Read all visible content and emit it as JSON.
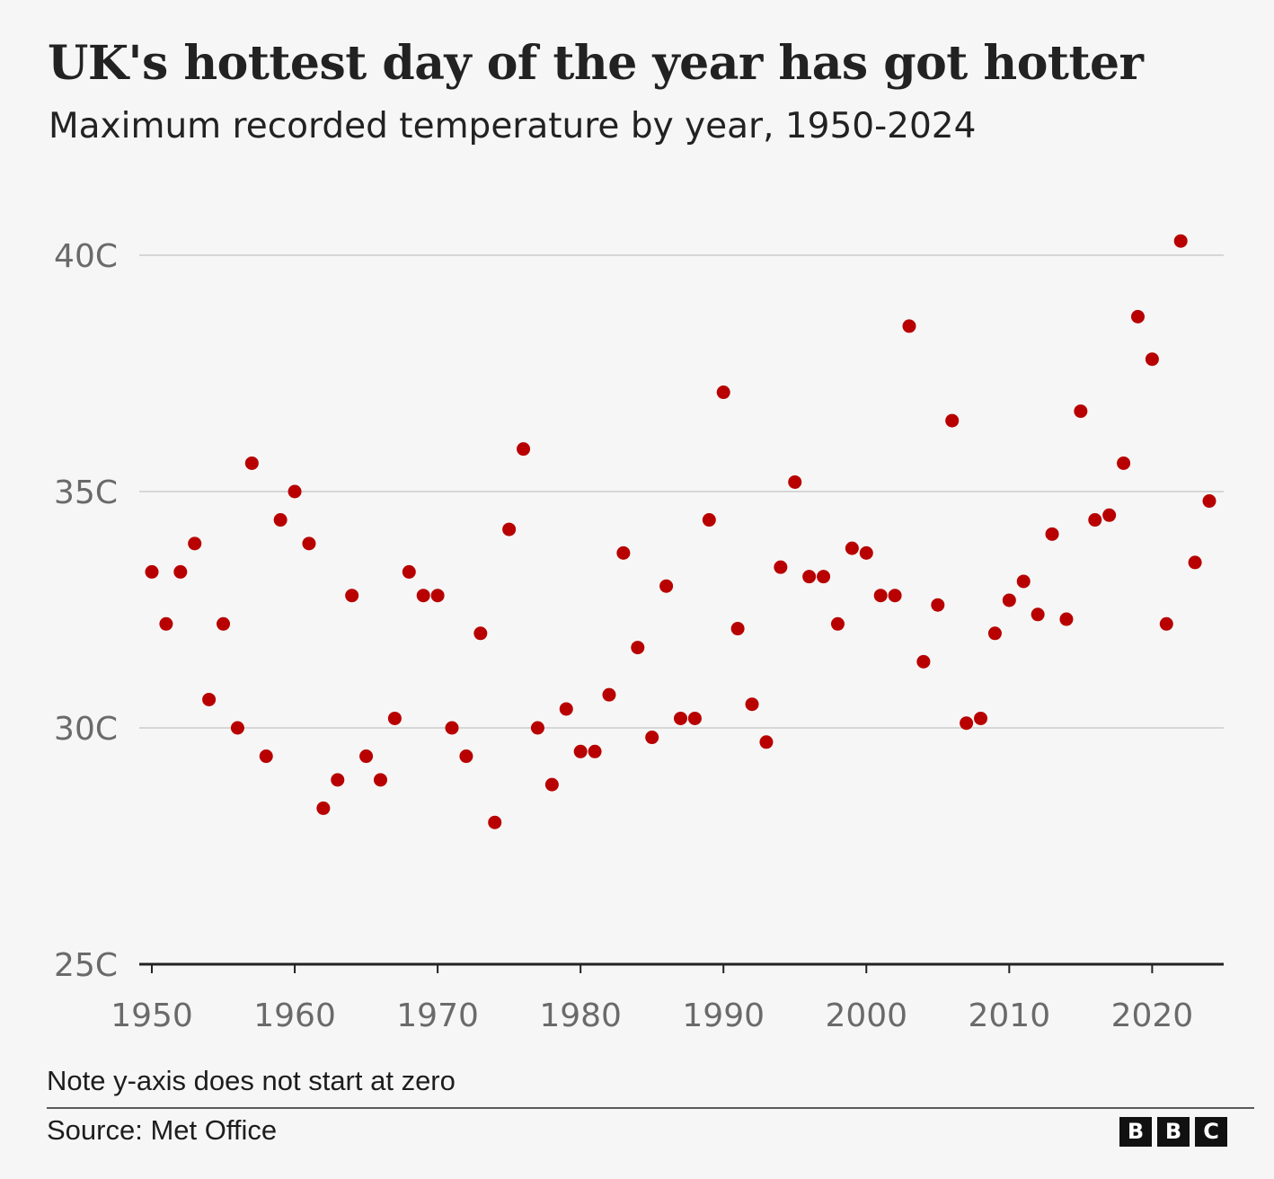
{
  "title": "UK's hottest day of the year has got hotter",
  "subtitle": "Maximum recorded temperature by year, 1950-2024",
  "note": "Note y-axis does not start at zero",
  "source": "Source: Met Office",
  "logo": [
    "B",
    "B",
    "C"
  ],
  "colors": {
    "marker": "#b80000",
    "gridline": "#d6d6d6",
    "axis": "#222222",
    "tick_text": "#6a6a6a"
  },
  "chart_data": {
    "type": "scatter",
    "title": "UK's hottest day of the year has got hotter",
    "subtitle": "Maximum recorded temperature by year, 1950-2024",
    "xlabel": "",
    "ylabel": "",
    "xlim": [
      1950,
      2024
    ],
    "ylim": [
      25,
      40
    ],
    "grid": true,
    "xticks": [
      1950,
      1960,
      1970,
      1980,
      1990,
      2000,
      2010,
      2020
    ],
    "xtick_labels": [
      "1950",
      "1960",
      "1970",
      "1980",
      "1990",
      "2000",
      "2010",
      "2020"
    ],
    "yticks": [
      25,
      30,
      35,
      40
    ],
    "ytick_labels": [
      "25C",
      "30C",
      "35C",
      "40C"
    ],
    "series": [
      {
        "name": "Maximum recorded temperature",
        "x": [
          1950,
          1951,
          1952,
          1953,
          1954,
          1955,
          1956,
          1957,
          1958,
          1959,
          1960,
          1961,
          1962,
          1963,
          1964,
          1965,
          1966,
          1967,
          1968,
          1969,
          1970,
          1971,
          1972,
          1973,
          1974,
          1975,
          1976,
          1977,
          1978,
          1979,
          1980,
          1981,
          1982,
          1983,
          1984,
          1985,
          1986,
          1987,
          1988,
          1989,
          1990,
          1991,
          1992,
          1993,
          1994,
          1995,
          1996,
          1997,
          1998,
          1999,
          2000,
          2001,
          2002,
          2003,
          2004,
          2005,
          2006,
          2007,
          2008,
          2009,
          2010,
          2011,
          2012,
          2013,
          2014,
          2015,
          2016,
          2017,
          2018,
          2019,
          2020,
          2021,
          2022,
          2023,
          2024
        ],
        "y": [
          33.3,
          32.2,
          33.3,
          33.9,
          30.6,
          32.2,
          30.0,
          35.6,
          29.4,
          34.4,
          35.0,
          33.9,
          28.3,
          28.9,
          32.8,
          29.4,
          28.9,
          30.2,
          33.3,
          32.8,
          32.8,
          30.0,
          29.4,
          32.0,
          28.0,
          34.2,
          35.9,
          30.0,
          28.8,
          30.4,
          29.5,
          29.5,
          30.7,
          33.7,
          31.7,
          29.8,
          33.0,
          30.2,
          30.2,
          34.4,
          37.1,
          32.1,
          30.5,
          29.7,
          33.4,
          35.2,
          33.2,
          33.2,
          32.2,
          33.8,
          33.7,
          32.8,
          32.8,
          38.5,
          31.4,
          32.6,
          36.5,
          30.1,
          30.2,
          32.0,
          32.7,
          33.1,
          32.4,
          34.1,
          32.3,
          36.7,
          34.4,
          34.5,
          35.6,
          38.7,
          37.8,
          32.2,
          40.3,
          33.5,
          34.8
        ]
      }
    ]
  }
}
